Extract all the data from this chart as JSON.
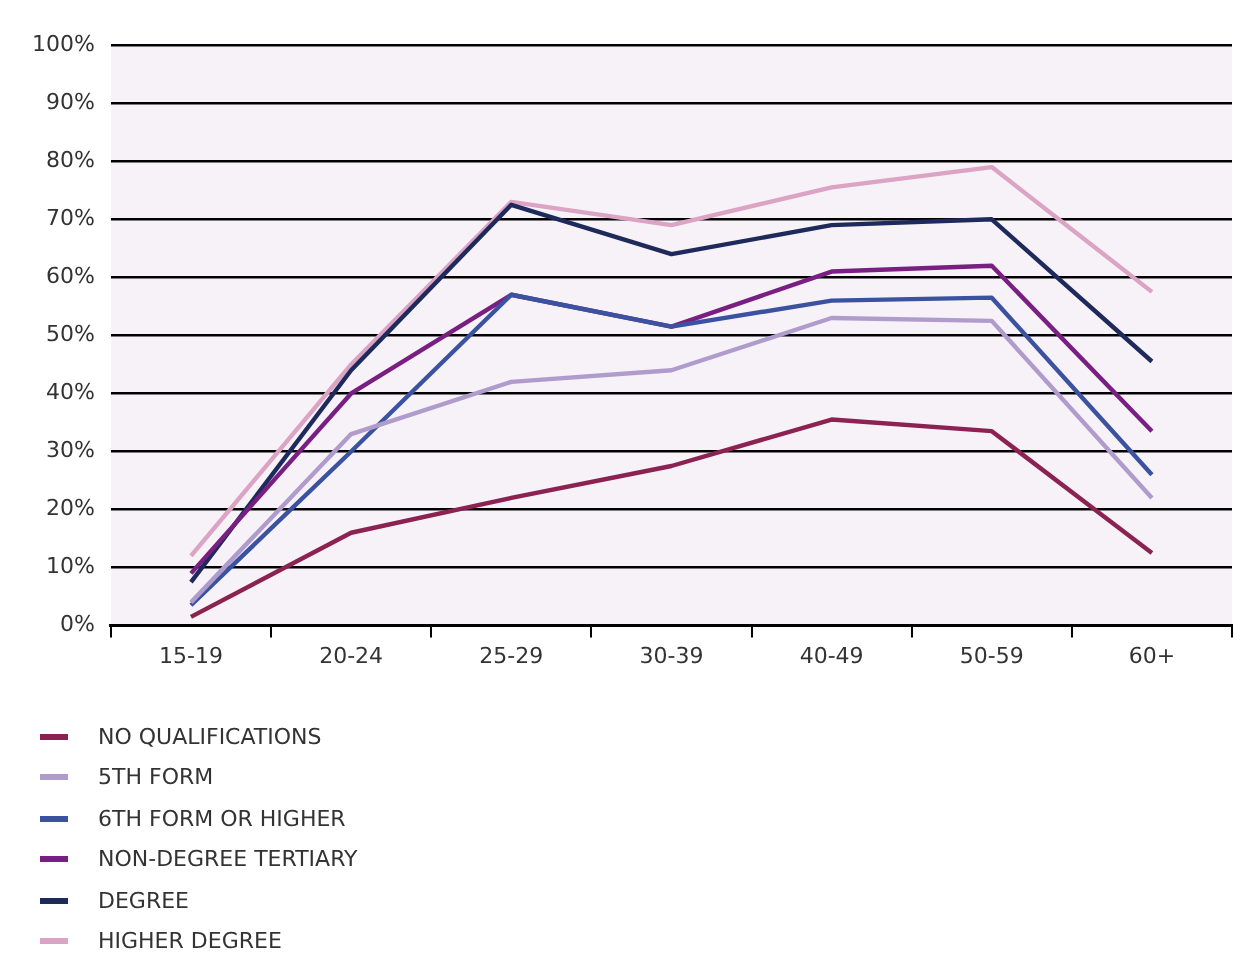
{
  "chart_data": {
    "type": "line",
    "categories": [
      "15-19",
      "20-24",
      "25-29",
      "30-39",
      "40-49",
      "50-59",
      "60+"
    ],
    "series": [
      {
        "name": "NO QUALIFICATIONS",
        "color": "#8b2252",
        "values": [
          1.5,
          16,
          22,
          27.5,
          35.5,
          33.5,
          12.5
        ]
      },
      {
        "name": "5TH FORM",
        "color": "#b09ccc",
        "values": [
          4,
          33,
          42,
          44,
          53,
          52.5,
          22
        ]
      },
      {
        "name": "6TH FORM OR HIGHER",
        "color": "#3a52a0",
        "values": [
          3.5,
          30,
          57,
          51.5,
          56,
          56.5,
          26
        ]
      },
      {
        "name": "NON-DEGREE TERTIARY",
        "color": "#7a1f82",
        "values": [
          9,
          40,
          57,
          51.5,
          61,
          62,
          33.5
        ]
      },
      {
        "name": "DEGREE",
        "color": "#1f2a5c",
        "values": [
          7.5,
          44,
          72.5,
          64,
          69,
          70,
          45.5
        ]
      },
      {
        "name": "HIGHER DEGREE",
        "color": "#dba3c4",
        "values": [
          12,
          45,
          73,
          69,
          75.5,
          79,
          57.5
        ]
      }
    ],
    "ylim": [
      0,
      100
    ],
    "yticks": [
      {
        "value": 0,
        "label": "0%"
      },
      {
        "value": 10,
        "label": "10%"
      },
      {
        "value": 20,
        "label": "20%"
      },
      {
        "value": 30,
        "label": "30%"
      },
      {
        "value": 40,
        "label": "40%"
      },
      {
        "value": 50,
        "label": "50%"
      },
      {
        "value": 60,
        "label": "60%"
      },
      {
        "value": 70,
        "label": "70%"
      },
      {
        "value": 80,
        "label": "80%"
      },
      {
        "value": 90,
        "label": "90%"
      },
      {
        "value": 100,
        "label": "100%"
      }
    ],
    "grid": "y",
    "legend": "bottom",
    "marker": "none",
    "line_style": "solid"
  }
}
